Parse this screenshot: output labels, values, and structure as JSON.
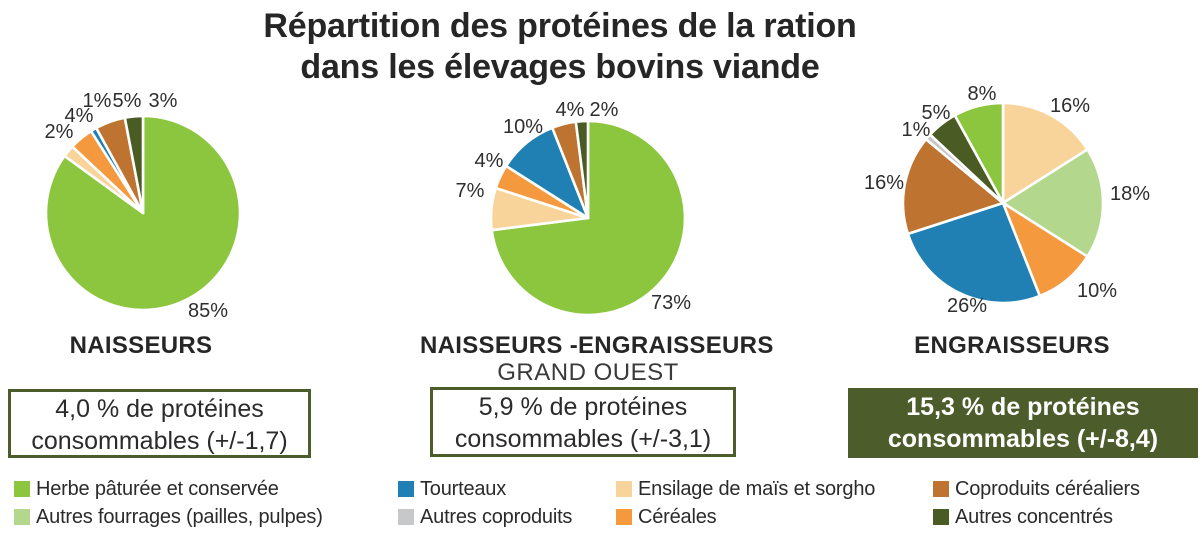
{
  "title": {
    "line1": "Répartition des protéines de la ration",
    "line2": "dans les élevages bovins viande"
  },
  "colors": {
    "herbe": "#8cc63f",
    "autres_fourrages": "#b3d78c",
    "tourteaux": "#2080b4",
    "autres_coproduits": "#c7c8ca",
    "ensilage": "#f9d49a",
    "cereales": "#f4993e",
    "coproduits_cerealiers": "#be7430",
    "autres_concentres": "#4a5b24",
    "box_dark_green": "#4c5c2b",
    "text_dark": "#2b2b2b"
  },
  "chart_data": [
    {
      "id": "naisseurs",
      "type": "pie",
      "caption": "NAISSEURS",
      "subcaption": "",
      "summary": {
        "line1": "4,0 % de protéines",
        "line2": "consommables (+/-1,7)"
      },
      "slices": [
        {
          "category": "Herbe pâturée et conservée",
          "color_key": "herbe",
          "value": 85,
          "label": "85%"
        },
        {
          "category": "Ensilage de maïs et sorgho",
          "color_key": "ensilage",
          "value": 2,
          "label": "2%"
        },
        {
          "category": "Céréales",
          "color_key": "cereales",
          "value": 4,
          "label": "4%"
        },
        {
          "category": "Tourteaux",
          "color_key": "tourteaux",
          "value": 1,
          "label": "1%"
        },
        {
          "category": "Coproduits céréaliers",
          "color_key": "coproduits_cerealiers",
          "value": 5,
          "label": "5%"
        },
        {
          "category": "Autres concentrés",
          "color_key": "autres_concentres",
          "value": 3,
          "label": "3%"
        }
      ]
    },
    {
      "id": "naisseurs_engraisseurs",
      "type": "pie",
      "caption": "NAISSEURS -ENGRAISSEURS",
      "subcaption": "GRAND OUEST",
      "summary": {
        "line1": "5,9 % de protéines",
        "line2": "consommables (+/-3,1)"
      },
      "slices": [
        {
          "category": "Herbe pâturée et conservée",
          "color_key": "herbe",
          "value": 73,
          "label": "73%"
        },
        {
          "category": "Ensilage de maïs et sorgho",
          "color_key": "ensilage",
          "value": 7,
          "label": "7%"
        },
        {
          "category": "Céréales",
          "color_key": "cereales",
          "value": 4,
          "label": "4%"
        },
        {
          "category": "Tourteaux",
          "color_key": "tourteaux",
          "value": 10,
          "label": "10%"
        },
        {
          "category": "Coproduits céréaliers",
          "color_key": "coproduits_cerealiers",
          "value": 4,
          "label": "4%"
        },
        {
          "category": "Autres concentrés",
          "color_key": "autres_concentres",
          "value": 2,
          "label": "2%"
        }
      ]
    },
    {
      "id": "engraisseurs",
      "type": "pie",
      "caption": "ENGRAISSEURS",
      "subcaption": "",
      "summary": {
        "line1": "15,3 % de protéines",
        "line2": "consommables (+/-8,4)"
      },
      "slices": [
        {
          "category": "Ensilage de maïs et sorgho",
          "color_key": "ensilage",
          "value": 16,
          "label": "16%"
        },
        {
          "category": "Autres fourrages (pailles, pulpes)",
          "color_key": "autres_fourrages",
          "value": 18,
          "label": "18%"
        },
        {
          "category": "Céréales",
          "color_key": "cereales",
          "value": 10,
          "label": "10%"
        },
        {
          "category": "Tourteaux",
          "color_key": "tourteaux",
          "value": 26,
          "label": "26%"
        },
        {
          "category": "Coproduits céréaliers",
          "color_key": "coproduits_cerealiers",
          "value": 16,
          "label": "16%"
        },
        {
          "category": "Autres coproduits",
          "color_key": "autres_coproduits",
          "value": 1,
          "label": "1%"
        },
        {
          "category": "Autres concentrés",
          "color_key": "autres_concentres",
          "value": 5,
          "label": "5%"
        },
        {
          "category": "Herbe pâturée et conservée",
          "color_key": "herbe",
          "value": 8,
          "label": "8%"
        }
      ]
    }
  ],
  "legend": {
    "columns": [
      [
        {
          "label": "Herbe pâturée et conservée",
          "color_key": "herbe"
        },
        {
          "label": "Autres fourrages (pailles, pulpes)",
          "color_key": "autres_fourrages"
        }
      ],
      [
        {
          "label": "Tourteaux",
          "color_key": "tourteaux"
        },
        {
          "label": "Autres coproduits",
          "color_key": "autres_coproduits"
        }
      ],
      [
        {
          "label": "Ensilage de maïs et sorgho",
          "color_key": "ensilage"
        },
        {
          "label": "Céréales",
          "color_key": "cereales"
        }
      ],
      [
        {
          "label": "Coproduits céréaliers",
          "color_key": "coproduits_cerealiers"
        },
        {
          "label": "Autres concentrés",
          "color_key": "autres_concentres"
        }
      ]
    ]
  }
}
